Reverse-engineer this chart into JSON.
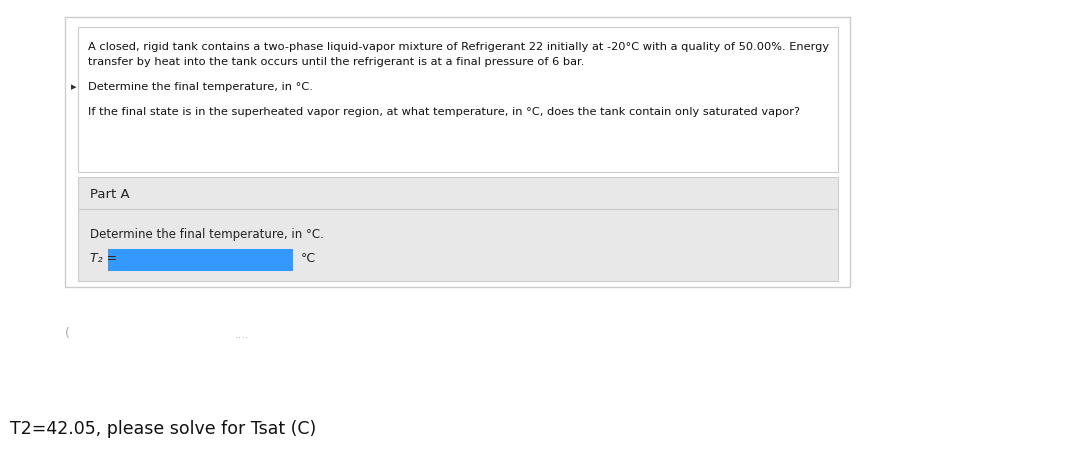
{
  "bg_color": "#f0f0f0",
  "page_bg": "#ffffff",
  "outer_box_color": "#ffffff",
  "outer_box_edge": "#cccccc",
  "inner_box1_color": "#ffffff",
  "inner_box1_edge": "#cccccc",
  "part_a_box_color": "#e8e8e8",
  "part_a_box_edge": "#cccccc",
  "inner_box2_color": "#e8e8e8",
  "inner_box2_edge": "#cccccc",
  "input_box_color": "#3399ff",
  "problem_text_line1": "A closed, rigid tank contains a two-phase liquid-vapor mixture of Refrigerant 22 initially at -20°C with a quality of 50.00%. Energy",
  "problem_text_line2": "transfer by heat into the tank occurs until the refrigerant is at a final pressure of 6 bar.",
  "problem_text_line3": "Determine the final temperature, in °C.",
  "problem_text_line4": "If the final state is in the superheated vapor region, at what temperature, in °C, does the tank contain only saturated vapor?",
  "part_a_label": "Part A",
  "part_a_sub_label": "Determine the final temperature, in °C.",
  "t2_label": "T₂ =",
  "unit_label": "°C",
  "bottom_text": "T2=42.05, please solve for Tsat (C)",
  "cursor_symbol": "▸"
}
